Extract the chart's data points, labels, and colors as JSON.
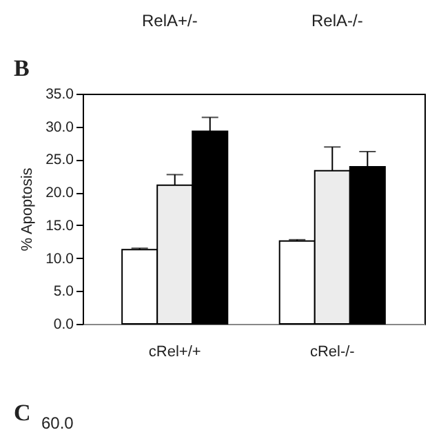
{
  "chart_data": {
    "type": "bar",
    "title": "B",
    "ylabel": "% Apoptosis",
    "categories": [
      "cRel+/+",
      "cRel-/-"
    ],
    "series": [
      {
        "color": "#ffffff",
        "values": [
          11.3,
          12.6
        ],
        "errors": [
          [
            11.3,
            11.5
          ],
          [
            12.6,
            12.8
          ]
        ]
      },
      {
        "color": "#ececec",
        "values": [
          21.1,
          23.3
        ],
        "errors": [
          [
            21.1,
            22.7
          ],
          [
            23.3,
            26.9
          ]
        ]
      },
      {
        "color": "#000000",
        "values": [
          29.3,
          23.9
        ],
        "errors": [
          [
            29.3,
            31.4
          ],
          [
            23.9,
            26.2
          ]
        ]
      }
    ],
    "ylim": [
      0,
      35
    ],
    "yticks": [
      {
        "value": 0,
        "label": "0.0"
      },
      {
        "value": 5,
        "label": "5.0"
      },
      {
        "value": 10,
        "label": "10.0"
      },
      {
        "value": 15,
        "label": "15.0"
      },
      {
        "value": 20,
        "label": "20.0"
      },
      {
        "value": 25,
        "label": "25.0"
      },
      {
        "value": 30,
        "label": "30.0"
      },
      {
        "value": 35,
        "label": "35.0"
      }
    ],
    "grid": false,
    "annotations": [
      "RelA+/-",
      "RelA-/-",
      "C",
      "60.0"
    ]
  }
}
